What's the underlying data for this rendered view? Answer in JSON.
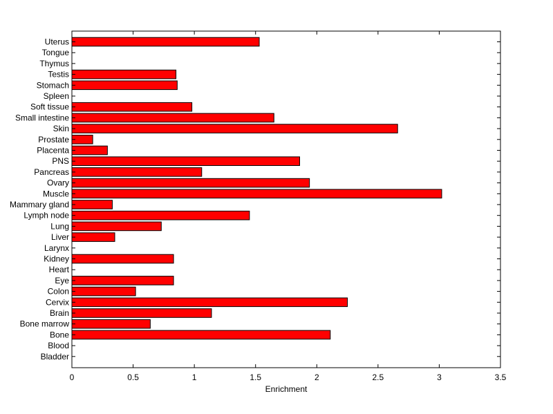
{
  "chart_data": {
    "type": "bar",
    "orientation": "horizontal",
    "xlabel": "Enrichment",
    "ylabel": "",
    "xlim": [
      0,
      3.5
    ],
    "xticks": [
      0,
      0.5,
      1,
      1.5,
      2,
      2.5,
      3,
      3.5
    ],
    "xtick_labels": [
      "0",
      "0.5",
      "1",
      "1.5",
      "2",
      "2.5",
      "3",
      "3.5"
    ],
    "grid": false,
    "bar_color": "#ff0000",
    "bar_edge_color": "#000000",
    "categories": [
      "Uterus",
      "Tongue",
      "Thymus",
      "Testis",
      "Stomach",
      "Spleen",
      "Soft tissue",
      "Small intestine",
      "Skin",
      "Prostate",
      "Placenta",
      "PNS",
      "Pancreas",
      "Ovary",
      "Muscle",
      "Mammary gland",
      "Lymph node",
      "Lung",
      "Liver",
      "Larynx",
      "Kidney",
      "Heart",
      "Eye",
      "Colon",
      "Cervix",
      "Brain",
      "Bone marrow",
      "Bone",
      "Blood",
      "Bladder"
    ],
    "values": [
      1.53,
      0,
      0,
      0.85,
      0.86,
      0,
      0.98,
      1.65,
      2.66,
      0.17,
      0.29,
      1.86,
      1.06,
      1.94,
      3.02,
      0.33,
      1.45,
      0.73,
      0.35,
      0,
      0.83,
      0,
      0.83,
      0.52,
      2.25,
      1.14,
      0.64,
      2.11,
      0,
      0
    ]
  }
}
